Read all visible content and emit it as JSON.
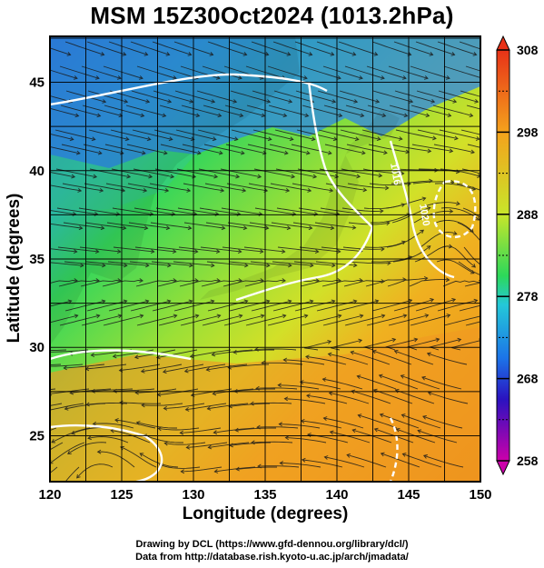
{
  "map": {
    "title": "MSM 15Z30Oct2024 (1013.2hPa)",
    "xlabel": "Longitude (degrees)",
    "ylabel": "Latitude  (degrees)",
    "x_ticks": [
      "120",
      "125",
      "130",
      "135",
      "140",
      "145",
      "150"
    ],
    "y_ticks": [
      "25",
      "30",
      "35",
      "40",
      "45"
    ],
    "x_range": [
      120,
      150
    ],
    "y_range": [
      22.4,
      47.6
    ],
    "grid": "on",
    "variable": "temperature (K) with streamlines, white isobars",
    "isobar_labels": [
      "1016",
      "1020"
    ],
    "colorbar": {
      "ticks": [
        "308",
        "298",
        "288",
        "278",
        "268",
        "258"
      ],
      "range": [
        258,
        308
      ],
      "colors": [
        "#cc00aa",
        "#2a12c0",
        "#1c74e8",
        "#24c8d8",
        "#2cd85a",
        "#c8e62a",
        "#f4a21c",
        "#e83218"
      ]
    }
  },
  "credits": {
    "line1": "Drawing by DCL (https://www.gfd-dennou.org/library/dcl/)",
    "line2": "Data from http://database.rish.kyoto-u.ac.jp/arch/jmadata/"
  }
}
